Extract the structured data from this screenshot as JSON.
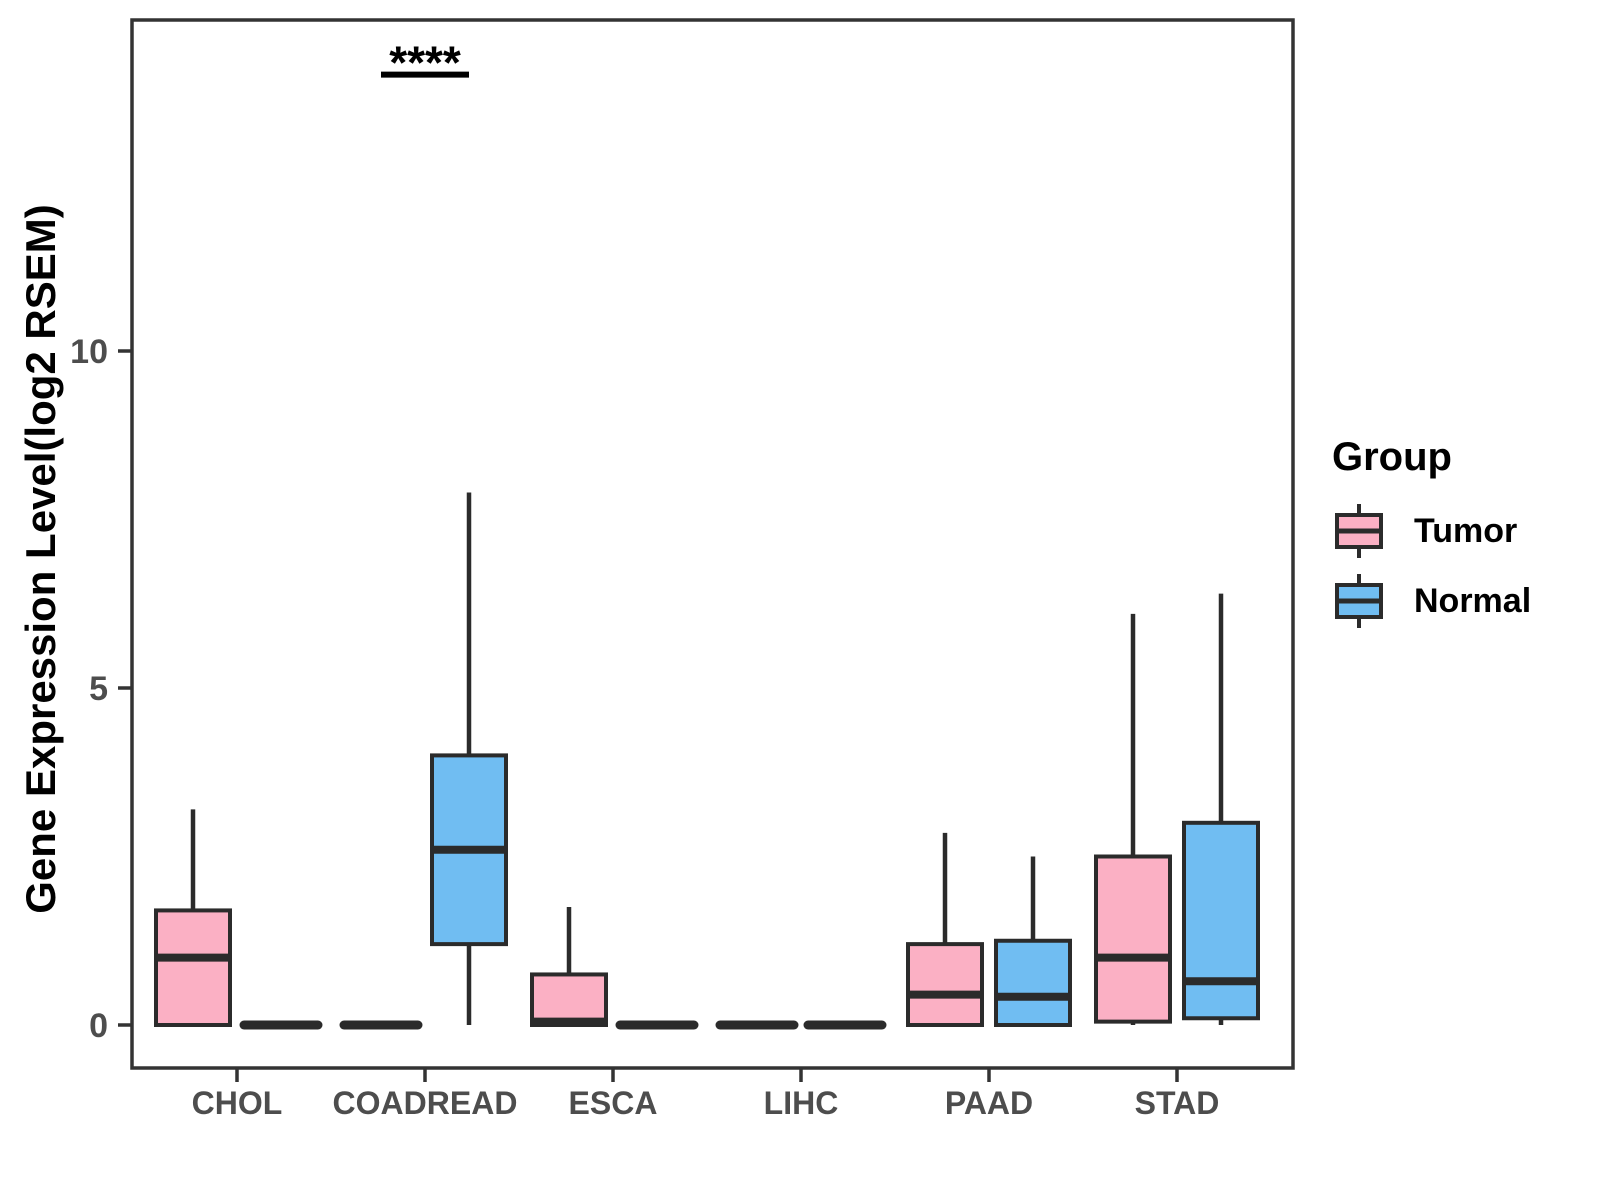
{
  "chart_data": {
    "type": "boxplot",
    "title": "",
    "xlabel": "",
    "ylabel": "Gene Expression Level(log2 RSEM)",
    "ylim": [
      -0.65,
      14.9
    ],
    "yticks": [
      0,
      5,
      10
    ],
    "grid": false,
    "categories": [
      "CHOL",
      "COADREAD",
      "ESCA",
      "LIHC",
      "PAAD",
      "STAD"
    ],
    "series": [
      {
        "name": "Tumor",
        "color": "#FBB0C4",
        "boxes": [
          {
            "low": 0,
            "q1": 0,
            "median": 1.0,
            "q3": 1.7,
            "high": 3.2
          },
          {
            "low": 0,
            "q1": 0,
            "median": 0,
            "q3": 0,
            "high": 0
          },
          {
            "low": 0,
            "q1": 0,
            "median": 0.05,
            "q3": 0.75,
            "high": 1.75
          },
          {
            "low": 0,
            "q1": 0,
            "median": 0,
            "q3": 0,
            "high": 0
          },
          {
            "low": 0,
            "q1": 0,
            "median": 0.45,
            "q3": 1.2,
            "high": 2.85
          },
          {
            "low": 0,
            "q1": 0.05,
            "median": 1.0,
            "q3": 2.5,
            "high": 6.1
          }
        ]
      },
      {
        "name": "Normal",
        "color": "#70BDF2",
        "boxes": [
          {
            "low": 0,
            "q1": 0,
            "median": 0,
            "q3": 0,
            "high": 0
          },
          {
            "low": 0,
            "q1": 1.2,
            "median": 2.6,
            "q3": 4.0,
            "high": 7.9
          },
          {
            "low": 0,
            "q1": 0,
            "median": 0,
            "q3": 0,
            "high": 0
          },
          {
            "low": 0,
            "q1": 0,
            "median": 0,
            "q3": 0,
            "high": 0
          },
          {
            "low": 0,
            "q1": 0,
            "median": 0.42,
            "q3": 1.25,
            "high": 2.5
          },
          {
            "low": 0,
            "q1": 0.1,
            "median": 0.65,
            "q3": 3.0,
            "high": 6.4
          }
        ]
      }
    ],
    "annotations": [
      {
        "text": "****",
        "category": "COADREAD",
        "y": 14.1
      }
    ],
    "legend": {
      "title": "Group",
      "position": "right"
    }
  },
  "colors": {
    "tumor_fill": "#FBB0C4",
    "normal_fill": "#70BDF2",
    "box_stroke": "#2b2b2b",
    "panel_border": "#333333",
    "axis_text": "#4d4d4d",
    "annotation": "#000000",
    "background": "#ffffff"
  }
}
